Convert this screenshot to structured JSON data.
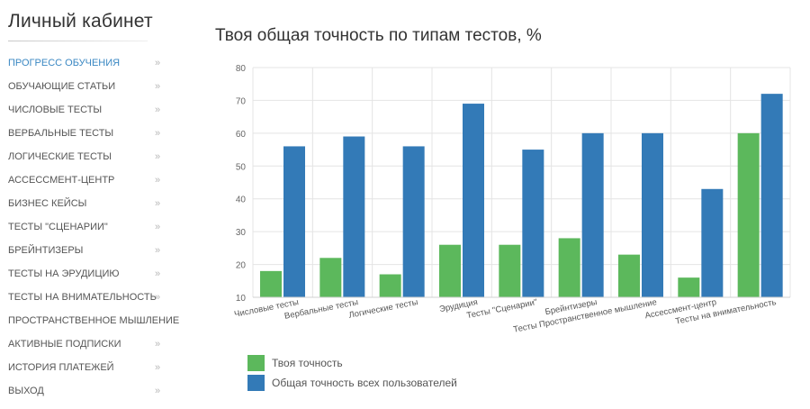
{
  "sidebar": {
    "title": "Личный кабинет",
    "items": [
      {
        "label": "ПРОГРЕСС ОБУЧЕНИЯ",
        "active": true,
        "chevron": "»"
      },
      {
        "label": "ОБУЧАЮЩИЕ СТАТЬИ",
        "chevron": "»"
      },
      {
        "label": "ЧИСЛОВЫЕ ТЕСТЫ",
        "chevron": "»"
      },
      {
        "label": "ВЕРБАЛЬНЫЕ ТЕСТЫ",
        "chevron": "»"
      },
      {
        "label": "ЛОГИЧЕСКИЕ ТЕСТЫ",
        "chevron": "»"
      },
      {
        "label": "АССЕССМЕНТ-ЦЕНТР",
        "chevron": "»"
      },
      {
        "label": "БИЗНЕС КЕЙСЫ",
        "chevron": "»"
      },
      {
        "label": "ТЕСТЫ \"СЦЕНАРИИ\"",
        "chevron": "»"
      },
      {
        "label": "БРЕЙНТИЗЕРЫ",
        "chevron": "»"
      },
      {
        "label": "ТЕСТЫ НА ЭРУДИЦИЮ",
        "chevron": "»"
      },
      {
        "label": "ТЕСТЫ НА ВНИМАТЕЛЬНОСТЬ",
        "chevron": "»"
      },
      {
        "label": "ПРОСТРАНСТВЕННОЕ МЫШЛЕНИЕ",
        "chevron": ""
      },
      {
        "label": "АКТИВНЫЕ ПОДПИСКИ",
        "chevron": "»"
      },
      {
        "label": "ИСТОРИЯ ПЛАТЕЖЕЙ",
        "chevron": "»"
      },
      {
        "label": "ВЫХОД",
        "chevron": "»"
      }
    ]
  },
  "main": {
    "title": "Твоя общая точность по типам тестов, %"
  },
  "colors": {
    "series_user": "#5cb85c",
    "series_all": "#337ab7",
    "active_link": "#3b88c3"
  },
  "chart_data": {
    "type": "bar",
    "categories": [
      "Числовые тесты",
      "Вербальные тесты",
      "Логические тесты",
      "Эрудиция",
      "Тесты \"Сценарии\"",
      "Брейнтизеры",
      "Тесты Пространственное мышление",
      "Ассессмент-центр",
      "Тесты на внимательность"
    ],
    "series": [
      {
        "name": "Твоя точность",
        "values": [
          18,
          22,
          17,
          26,
          26,
          28,
          23,
          16,
          60
        ]
      },
      {
        "name": "Общая точность всех пользователей",
        "values": [
          56,
          59,
          56,
          69,
          55,
          60,
          60,
          43,
          72
        ]
      }
    ],
    "yticks": [
      "80",
      "70",
      "60",
      "50",
      "40",
      "30",
      "20",
      "10"
    ],
    "ylim": [
      10,
      80
    ],
    "grid": true,
    "legend_position": "bottom-left"
  }
}
